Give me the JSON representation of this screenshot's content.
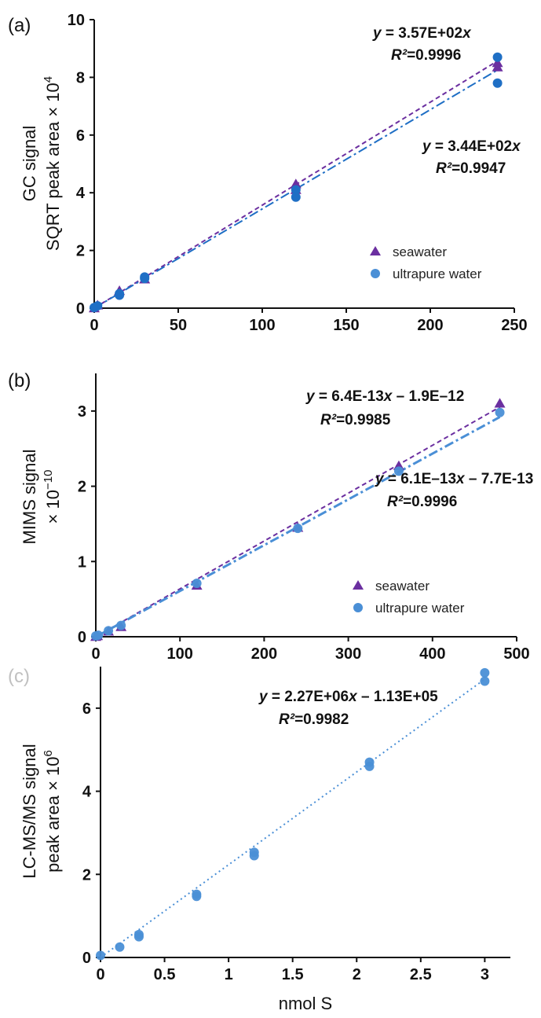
{
  "colors": {
    "seawater": "#6b2fa0",
    "ultrapure": "#4a8fd6",
    "ultrapure_dark": "#1f6fc5",
    "axis": "#111111"
  },
  "chart_data": [
    {
      "type": "scatter",
      "panel_label": "(a)",
      "ylabel_lines": [
        "GC signal",
        "SQRT peak area × 10",
        "4"
      ],
      "xlabel": "",
      "xlim": [
        0,
        250
      ],
      "ylim": [
        0,
        10
      ],
      "xticks": [
        0,
        50,
        100,
        150,
        200,
        250
      ],
      "yticks": [
        0,
        2,
        4,
        6,
        8,
        10
      ],
      "series": [
        {
          "name": "seawater",
          "marker": "triangle",
          "x": [
            0,
            2,
            15,
            30,
            120,
            120,
            240,
            240
          ],
          "y": [
            0,
            0.1,
            0.6,
            1.0,
            4.3,
            4.1,
            8.5,
            8.35
          ]
        },
        {
          "name": "ultrapure water",
          "marker": "circle",
          "x": [
            0,
            2,
            15,
            15,
            30,
            30,
            120,
            120,
            240,
            240
          ],
          "y": [
            0.02,
            0.08,
            0.5,
            0.45,
            1.08,
            1.03,
            4.1,
            3.85,
            8.7,
            7.8
          ]
        }
      ],
      "fits": [
        {
          "series": "seawater",
          "slope": 0.0357,
          "intercept": 0,
          "style": "dash"
        },
        {
          "series": "ultrapure water",
          "slope": 0.0344,
          "intercept": 0,
          "style": "dashdot"
        }
      ],
      "annotations": [
        {
          "eq": "y = 3.57E+02x",
          "r2": "R²=0.9996"
        },
        {
          "eq": "y = 3.44E+02x",
          "r2": "R²=0.9947"
        }
      ],
      "legend": [
        "seawater",
        "ultrapure water"
      ]
    },
    {
      "type": "scatter",
      "panel_label": "(b)",
      "ylabel_lines": [
        "MIMS signal",
        "× 10",
        "−10"
      ],
      "xlabel": "",
      "xlim": [
        0,
        500
      ],
      "ylim": [
        0,
        3.5
      ],
      "xticks": [
        0,
        100,
        200,
        300,
        400,
        500
      ],
      "yticks": [
        0,
        1,
        2,
        3
      ],
      "series": [
        {
          "name": "seawater",
          "marker": "triangle",
          "x": [
            0,
            2,
            15,
            30,
            120,
            240,
            360,
            480
          ],
          "y": [
            0,
            0.01,
            0.07,
            0.13,
            0.68,
            1.45,
            2.27,
            3.1
          ]
        },
        {
          "name": "ultrapure water",
          "marker": "circle",
          "x": [
            0,
            3,
            15,
            30,
            120,
            240,
            360,
            480
          ],
          "y": [
            0.01,
            0.02,
            0.08,
            0.15,
            0.71,
            1.44,
            2.2,
            2.98
          ]
        }
      ],
      "fits": [
        {
          "series": "seawater",
          "slope": 0.0064,
          "intercept": -0.019,
          "style": "dash"
        },
        {
          "series": "ultrapure water",
          "slope": 0.0061,
          "intercept": -0.0077,
          "style": "dashdot"
        }
      ],
      "annotations": [
        {
          "eq": "y = 6.4E-13x – 1.9E–12",
          "r2": "R²=0.9985"
        },
        {
          "eq": "y = 6.1E–13x – 7.7E-13",
          "r2": "R²=0.9996"
        }
      ],
      "legend": [
        "seawater",
        "ultrapure water"
      ]
    },
    {
      "type": "scatter",
      "panel_label": "(c)",
      "ylabel_lines": [
        "LC-MS/MS signal",
        "peak area × 10",
        "6"
      ],
      "xlabel": "nmol S",
      "xlim": [
        0,
        3.2
      ],
      "ylim": [
        0,
        7
      ],
      "xticks": [
        0,
        0.5,
        1,
        1.5,
        2,
        2.5,
        3
      ],
      "yticks": [
        0,
        2,
        4,
        6
      ],
      "series": [
        {
          "name": "",
          "marker": "circle",
          "x": [
            0,
            0.15,
            0.3,
            0.3,
            0.75,
            0.75,
            1.2,
            1.2,
            2.1,
            2.1,
            3.0,
            3.0
          ],
          "y": [
            0.05,
            0.25,
            0.55,
            0.5,
            1.52,
            1.47,
            2.53,
            2.45,
            4.7,
            4.6,
            6.85,
            6.65
          ]
        }
      ],
      "fits": [
        {
          "series": "",
          "slope": 2.27,
          "intercept": -0.113,
          "style": "dot"
        }
      ],
      "annotations": [
        {
          "eq": "y = 2.27E+06x – 1.13E+05",
          "r2": "R²=0.9982"
        }
      ],
      "legend": []
    }
  ]
}
